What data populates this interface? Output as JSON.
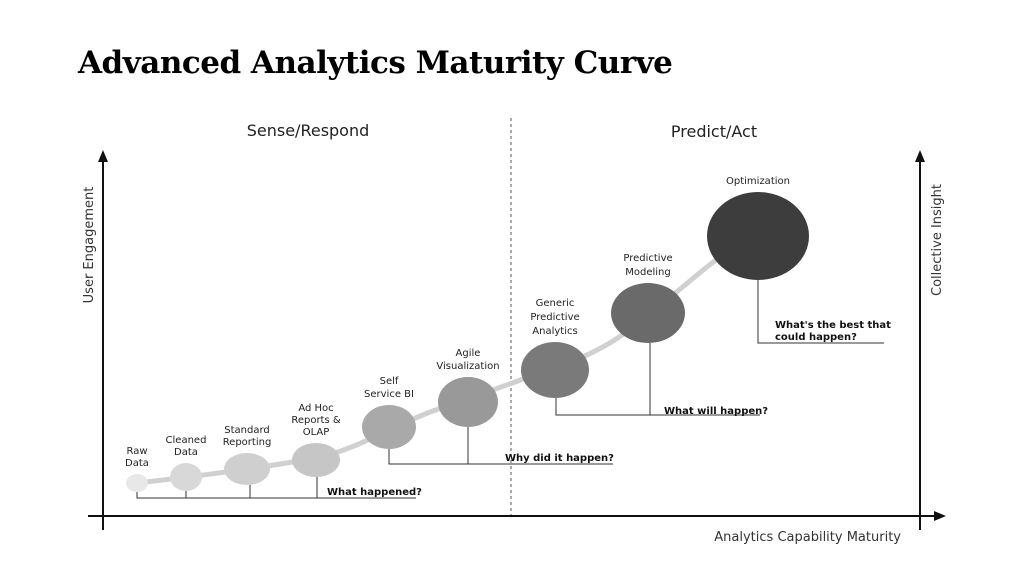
{
  "header": {
    "title": "Advanced Analytics Maturity Curve"
  },
  "sections": [
    "Sense/Respond",
    "Predict/Act"
  ],
  "axes": {
    "left": "User Engagement",
    "right": "Collective Insight",
    "bottom": "Analytics Capability Maturity"
  },
  "nodes": [
    {
      "label": [
        "Raw",
        "Data"
      ]
    },
    {
      "label": [
        "Cleaned",
        "Data"
      ]
    },
    {
      "label": [
        "Standard",
        "Reporting"
      ]
    },
    {
      "label": [
        "Ad Hoc",
        "Reports &",
        "OLAP"
      ]
    },
    {
      "label": [
        "Self",
        "Service BI"
      ]
    },
    {
      "label": [
        "Agile",
        "Visualization"
      ]
    },
    {
      "label": [
        "Generic",
        "Predictive",
        "Analytics"
      ]
    },
    {
      "label": [
        "Predictive",
        "Modeling"
      ]
    },
    {
      "label": [
        "Optimization"
      ]
    }
  ],
  "questions": [
    {
      "text": [
        "What happened?"
      ]
    },
    {
      "text": [
        "Why did it happen?"
      ]
    },
    {
      "text": [
        "What will happen?"
      ]
    },
    {
      "text": [
        "What's the best that",
        "could happen?"
      ]
    }
  ]
}
